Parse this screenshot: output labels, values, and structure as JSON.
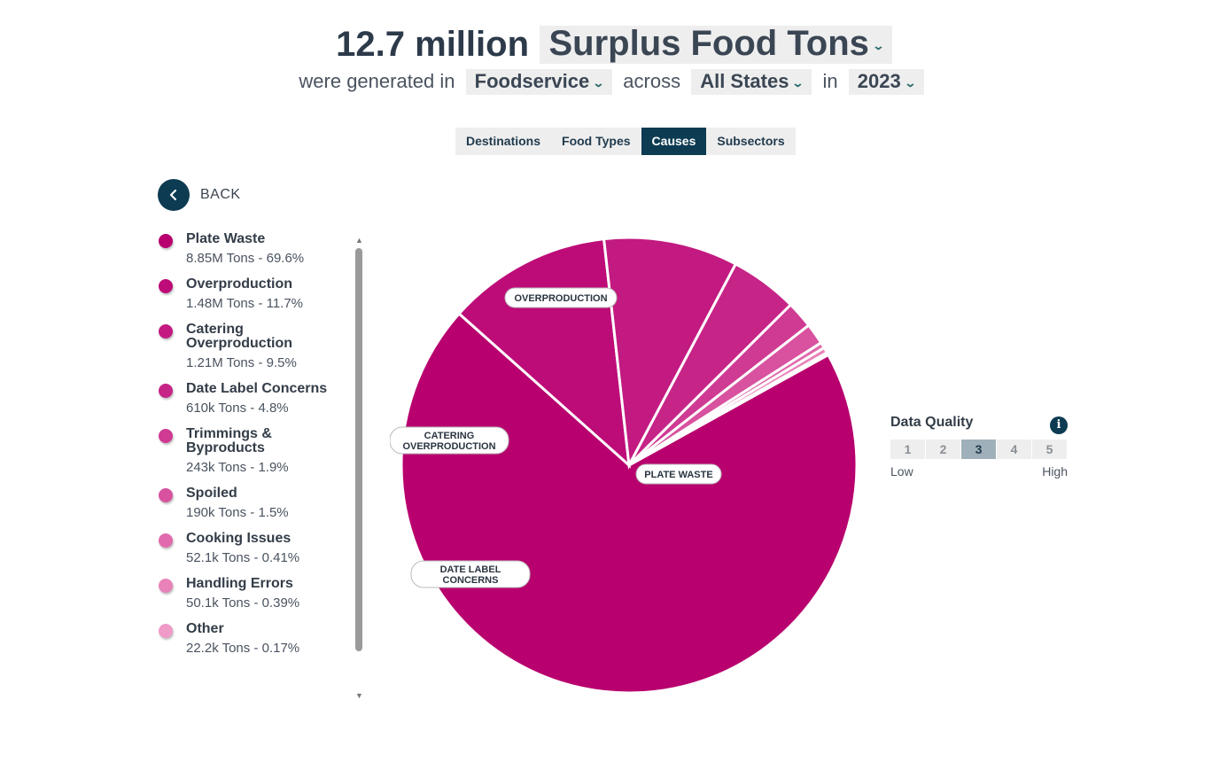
{
  "header": {
    "amount": "12.7 million",
    "metric": "Surplus Food Tons",
    "text_generated": "were generated in",
    "sector": "Foodservice",
    "text_across": "across",
    "region": "All States",
    "text_in": "in",
    "year": "2023"
  },
  "tabs": [
    {
      "label": "Destinations"
    },
    {
      "label": "Food Types"
    },
    {
      "label": "Causes"
    },
    {
      "label": "Subsectors"
    }
  ],
  "back_label": "BACK",
  "legend": [
    {
      "name": "Plate Waste",
      "value": "8.85M Tons - 69.6%",
      "color": "#b8006e"
    },
    {
      "name": "Overproduction",
      "value": "1.48M Tons - 11.7%",
      "color": "#bd0c78"
    },
    {
      "name": "Catering Overproduction",
      "value": "1.21M Tons - 9.5%",
      "color": "#c21a80"
    },
    {
      "name": "Date Label Concerns",
      "value": "610k Tons - 4.8%",
      "color": "#c62487"
    },
    {
      "name": "Trimmings & Byproducts",
      "value": "243k Tons - 1.9%",
      "color": "#cf3a93"
    },
    {
      "name": "Spoiled",
      "value": "190k Tons - 1.5%",
      "color": "#d8529f"
    },
    {
      "name": "Cooking Issues",
      "value": "52.1k Tons - 0.41%",
      "color": "#e06aac"
    },
    {
      "name": "Handling Errors",
      "value": "50.1k Tons - 0.39%",
      "color": "#e882b9"
    },
    {
      "name": "Other",
      "value": "22.2k Tons - 0.17%",
      "color": "#f09ac8"
    }
  ],
  "pie_labels": [
    "OVERPRODUCTION",
    "CATERING OVERPRODUCTION",
    "PLATE WASTE",
    "DATE LABEL CONCERNS"
  ],
  "data_quality": {
    "title": "Data Quality",
    "info_icon": "i",
    "levels": [
      "1",
      "2",
      "3",
      "4",
      "5"
    ],
    "selected": 3,
    "low_label": "Low",
    "high_label": "High"
  },
  "chart_data": {
    "type": "pie",
    "categories": [
      "Plate Waste",
      "Overproduction",
      "Catering Overproduction",
      "Date Label Concerns",
      "Trimmings & Byproducts",
      "Spoiled",
      "Cooking Issues",
      "Handling Errors",
      "Other"
    ],
    "values": [
      8.85,
      1.48,
      1.21,
      0.61,
      0.243,
      0.19,
      0.0521,
      0.0501,
      0.0222
    ],
    "unit": "million tons",
    "percentages": [
      69.6,
      11.7,
      9.5,
      4.8,
      1.9,
      1.5,
      0.41,
      0.39,
      0.17
    ]
  }
}
